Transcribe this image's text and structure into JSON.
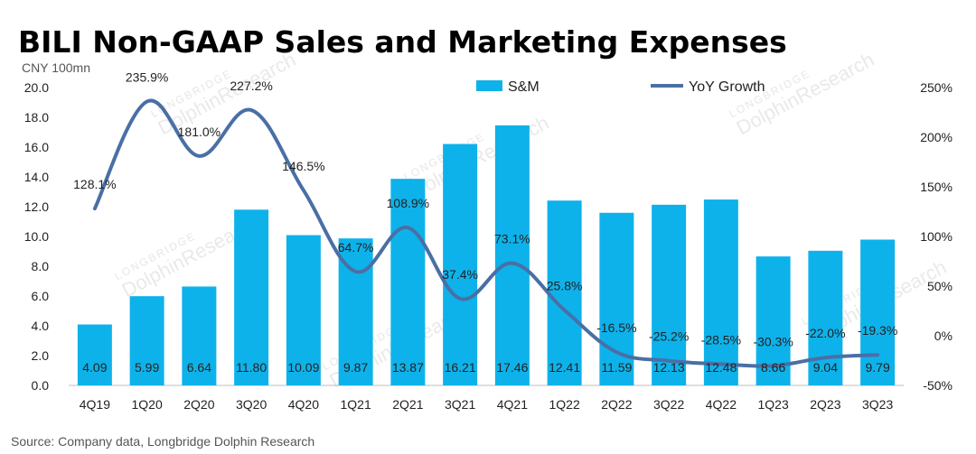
{
  "title": "BILI Non-GAAP Sales and Marketing Expenses",
  "unit_label": "CNY 100mn",
  "source": "Source: Company data, Longbridge Dolphin Research",
  "watermark": {
    "line1": "LONGBRIDGE",
    "line2": "DolphinResearch"
  },
  "colors": {
    "bar": "#0EB2EA",
    "line": "#4A6FA5",
    "text": "#222222"
  },
  "chart_data": {
    "type": "bar",
    "categories": [
      "4Q19",
      "1Q20",
      "2Q20",
      "3Q20",
      "4Q20",
      "1Q21",
      "2Q21",
      "3Q21",
      "4Q21",
      "1Q22",
      "2Q22",
      "3Q22",
      "4Q22",
      "1Q23",
      "2Q23",
      "3Q23"
    ],
    "series": [
      {
        "name": "S&M",
        "type": "bar",
        "axis": "left",
        "values": [
          4.09,
          5.99,
          6.64,
          11.8,
          10.09,
          9.87,
          13.87,
          16.21,
          17.46,
          12.41,
          11.59,
          12.13,
          12.48,
          8.66,
          9.04,
          9.79
        ],
        "labels": [
          "4.09",
          "5.99",
          "6.64",
          "11.80",
          "10.09",
          "9.87",
          "13.87",
          "16.21",
          "17.46",
          "12.41",
          "11.59",
          "12.13",
          "12.48",
          "8.66",
          "9.04",
          "9.79"
        ]
      },
      {
        "name": "YoY Growth",
        "type": "line",
        "axis": "right",
        "values": [
          128.1,
          235.9,
          181.0,
          227.2,
          146.5,
          64.7,
          108.9,
          37.4,
          73.1,
          25.8,
          -16.5,
          -25.2,
          -28.5,
          -30.3,
          -22.0,
          -19.3
        ],
        "labels": [
          "128.1%",
          "235.9%",
          "181.0%",
          "227.2%",
          "146.5%",
          "64.7%",
          "108.9%",
          "37.4%",
          "73.1%",
          "25.8%",
          "-16.5%",
          "-25.2%",
          "-28.5%",
          "-30.3%",
          "-22.0%",
          "-19.3%"
        ]
      }
    ],
    "y_left": {
      "min": 0,
      "max": 20,
      "step": 2,
      "ticks": [
        "0.0",
        "2.0",
        "4.0",
        "6.0",
        "8.0",
        "10.0",
        "12.0",
        "14.0",
        "16.0",
        "18.0",
        "20.0"
      ]
    },
    "y_right": {
      "min": -50,
      "max": 250,
      "step": 50,
      "ticks": [
        "-50%",
        "0%",
        "50%",
        "100%",
        "150%",
        "200%",
        "250%"
      ]
    },
    "legend": {
      "position": "top",
      "items": [
        "S&M",
        "YoY Growth"
      ]
    },
    "grid": false
  }
}
